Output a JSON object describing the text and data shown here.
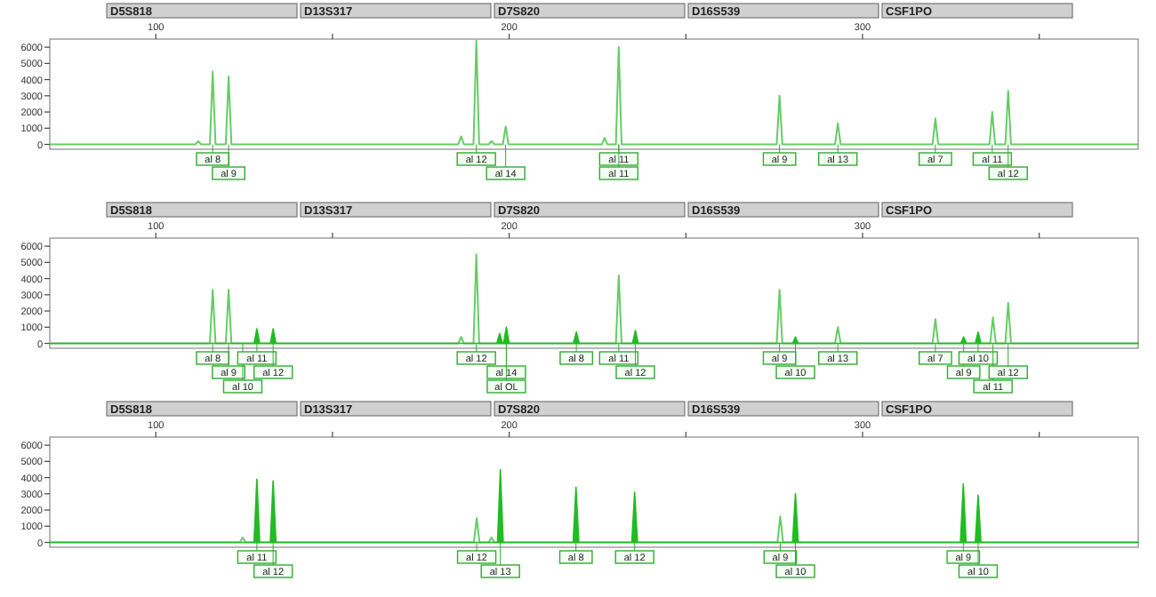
{
  "chart_data": [
    {
      "type": "line",
      "xlim": [
        70,
        378
      ],
      "ylim": [
        -300,
        6500
      ],
      "xticks": [
        100,
        {
          "value": 150,
          "label": null
        },
        200,
        {
          "value": 250,
          "label": null
        },
        300,
        {
          "value": 350,
          "label": null
        }
      ],
      "yticks": [
        0,
        1000,
        2000,
        3000,
        4000,
        5000,
        6000
      ],
      "series": [
        {
          "type": "line",
          "color": "#66cc66",
          "x": [
            70,
            111.2,
            112,
            112.8,
            115.3,
            116.1,
            116.9,
            119.8,
            120.6,
            121.4,
            185.6,
            186.4,
            187.2,
            189.9,
            190.7,
            191.5,
            194.2,
            195,
            195.8,
            198.2,
            199,
            199.8,
            226.2,
            227,
            227.8,
            230.2,
            231,
            231.8,
            275.7,
            276.5,
            277.3,
            292.2,
            293,
            293.8,
            319.8,
            320.6,
            321.4,
            335.9,
            336.7,
            337.5,
            340.4,
            341.2,
            342,
            378
          ],
          "values": [
            0,
            0,
            200,
            0,
            0,
            4500,
            0,
            0,
            4200,
            0,
            0,
            500,
            0,
            0,
            6400,
            0,
            0,
            200,
            0,
            0,
            1100,
            0,
            0,
            400,
            0,
            0,
            6000,
            0,
            0,
            3000,
            0,
            0,
            1300,
            0,
            0,
            1600,
            0,
            0,
            2000,
            0,
            0,
            3300,
            0,
            0
          ]
        }
      ],
      "annotations": [
        "D5S818",
        "D13S317",
        "D7S820",
        "D16S539",
        "CSF1PO",
        {
          "text": "al 8",
          "x": 116.1,
          "y": 0
        },
        {
          "text": "al 9",
          "x": 120.6,
          "y": 0
        },
        {
          "text": "al 12",
          "x": 190.7,
          "y": 0
        },
        {
          "text": "al 14",
          "x": 199,
          "y": 0
        },
        {
          "text": "al 11",
          "x": 231,
          "y": 0
        },
        {
          "text": "al 11",
          "x": 231,
          "y": 0
        },
        {
          "text": "al 9",
          "x": 276.5,
          "y": 0
        },
        {
          "text": "al 13",
          "x": 293,
          "y": 0
        },
        {
          "text": "al 7",
          "x": 320.6,
          "y": 0
        },
        {
          "text": "al 11",
          "x": 336.7,
          "y": 0
        },
        {
          "text": "al 12",
          "x": 341.2,
          "y": 0
        }
      ]
    },
    {
      "type": "line",
      "xlim": [
        70,
        378
      ],
      "ylim": [
        -300,
        6500
      ],
      "xticks": [
        100,
        {
          "value": 150,
          "label": null
        },
        200,
        {
          "value": 250,
          "label": null
        },
        300,
        {
          "value": 350,
          "label": null
        }
      ],
      "yticks": [
        0,
        1000,
        2000,
        3000,
        4000,
        5000,
        6000
      ],
      "series": [
        {
          "type": "line",
          "color": "#66cc66",
          "x": [
            70,
            115.3,
            116.1,
            116.9,
            119.8,
            120.6,
            121.4,
            185.6,
            186.4,
            187.2,
            189.9,
            190.7,
            191.5,
            230.2,
            231,
            231.8,
            275.7,
            276.5,
            277.3,
            292.2,
            293,
            293.8,
            319.8,
            320.6,
            321.4,
            336.1,
            336.9,
            337.7,
            340.4,
            341.2,
            342,
            378
          ],
          "values": [
            0,
            0,
            3300,
            0,
            0,
            3300,
            0,
            0,
            400,
            0,
            0,
            5500,
            0,
            0,
            4200,
            0,
            0,
            3300,
            0,
            0,
            1000,
            0,
            0,
            1500,
            0,
            0,
            1600,
            0,
            0,
            2500,
            0,
            0
          ]
        },
        {
          "type": "area",
          "color": "#22bb22",
          "x": [
            70,
            127.8,
            128.6,
            129.4,
            132.4,
            133.2,
            134,
            196.5,
            197.3,
            198.1,
            198.4,
            199.2,
            200,
            218.2,
            219,
            219.8,
            234.9,
            235.7,
            236.5,
            280.2,
            281,
            281.8,
            327.8,
            328.6,
            329.4,
            331.9,
            332.7,
            333.5,
            378
          ],
          "values": [
            0,
            0,
            900,
            0,
            0,
            900,
            0,
            0,
            600,
            0,
            0,
            1000,
            0,
            0,
            700,
            0,
            0,
            800,
            0,
            0,
            400,
            0,
            0,
            400,
            0,
            0,
            700,
            0,
            0
          ]
        }
      ],
      "annotations": [
        "D5S818",
        "D13S317",
        "D7S820",
        "D16S539",
        "CSF1PO",
        {
          "text": "al 8",
          "x": 116.1,
          "y": 0
        },
        {
          "text": "al 9",
          "x": 120.6,
          "y": 0
        },
        {
          "text": "al 10",
          "x": 124.6,
          "y": 0
        },
        {
          "text": "al 11",
          "x": 128.6,
          "y": 0
        },
        {
          "text": "al 12",
          "x": 133.2,
          "y": 0
        },
        {
          "text": "al 12",
          "x": 190.7,
          "y": 0
        },
        {
          "text": "al 14",
          "x": 199.2,
          "y": 0
        },
        {
          "text": "al OL",
          "x": 199.2,
          "y": 0
        },
        {
          "text": "al 8",
          "x": 219,
          "y": 0
        },
        {
          "text": "al 11",
          "x": 231,
          "y": 0
        },
        {
          "text": "al 12",
          "x": 235.7,
          "y": 0
        },
        {
          "text": "al 9",
          "x": 276.5,
          "y": 0
        },
        {
          "text": "al 10",
          "x": 281,
          "y": 0
        },
        {
          "text": "al 13",
          "x": 293,
          "y": 0
        },
        {
          "text": "al 7",
          "x": 320.6,
          "y": 0
        },
        {
          "text": "al 9",
          "x": 328.6,
          "y": 0
        },
        {
          "text": "al 10",
          "x": 332.7,
          "y": 0
        },
        {
          "text": "al 11",
          "x": 336.9,
          "y": 0
        },
        {
          "text": "al 12",
          "x": 341.2,
          "y": 0
        }
      ]
    },
    {
      "type": "line",
      "xlim": [
        70,
        378
      ],
      "ylim": [
        -300,
        6500
      ],
      "xticks": [
        100,
        {
          "value": 150,
          "label": null
        },
        200,
        {
          "value": 250,
          "label": null
        },
        300,
        {
          "value": 350,
          "label": null
        }
      ],
      "yticks": [
        0,
        1000,
        2000,
        3000,
        4000,
        5000,
        6000
      ],
      "series": [
        {
          "type": "line",
          "color": "#66cc66",
          "x": [
            70,
            123.8,
            124.6,
            125.4,
            190,
            190.8,
            191.6,
            194.2,
            195,
            195.8,
            275.9,
            276.7,
            277.5,
            378
          ],
          "values": [
            0,
            0,
            300,
            0,
            0,
            1500,
            0,
            0,
            300,
            0,
            0,
            1600,
            0,
            0
          ]
        },
        {
          "type": "area",
          "color": "#22bb22",
          "x": [
            70,
            127.8,
            128.6,
            129.4,
            132.4,
            133.2,
            134,
            196.7,
            197.5,
            198.3,
            218.1,
            218.9,
            219.7,
            234.7,
            235.5,
            236.3,
            280.2,
            281,
            281.8,
            327.7,
            328.5,
            329.3,
            331.9,
            332.7,
            333.5,
            378
          ],
          "values": [
            0,
            0,
            3900,
            0,
            0,
            3800,
            0,
            0,
            4500,
            0,
            0,
            3400,
            0,
            0,
            3100,
            0,
            0,
            3000,
            0,
            0,
            3600,
            0,
            0,
            2900,
            0,
            0
          ]
        }
      ],
      "annotations": [
        "D5S818",
        "D13S317",
        "D7S820",
        "D16S539",
        "CSF1PO",
        {
          "text": "al 11",
          "x": 128.6,
          "y": 0
        },
        {
          "text": "al 12",
          "x": 133.2,
          "y": 0
        },
        {
          "text": "al 12",
          "x": 190.8,
          "y": 0
        },
        {
          "text": "al 13",
          "x": 197.5,
          "y": 0
        },
        {
          "text": "al 8",
          "x": 218.9,
          "y": 0
        },
        {
          "text": "al 12",
          "x": 235.5,
          "y": 0
        },
        {
          "text": "al 9",
          "x": 276.7,
          "y": 0
        },
        {
          "text": "al 10",
          "x": 281,
          "y": 0
        },
        {
          "text": "al 9",
          "x": 328.5,
          "y": 0
        },
        {
          "text": "al 10",
          "x": 332.7,
          "y": 0
        }
      ]
    }
  ]
}
